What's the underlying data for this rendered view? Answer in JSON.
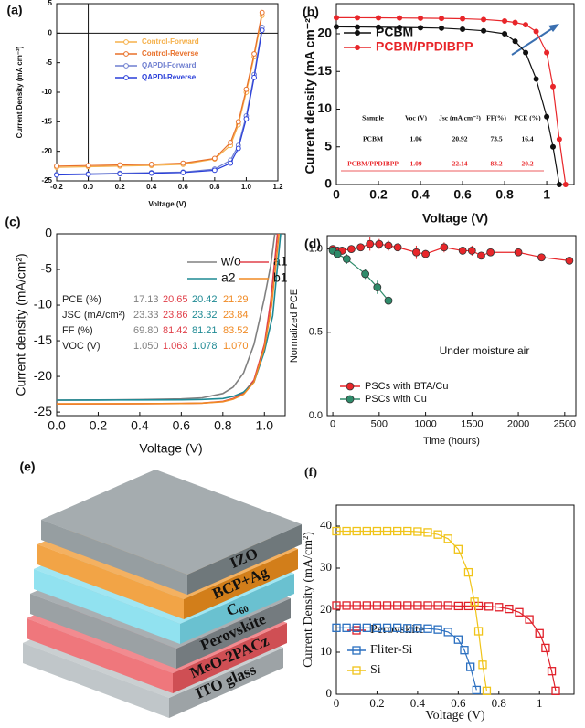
{
  "chart_data": [
    {
      "type": "line",
      "panel_label": "(a)",
      "xlabel": "Voltage (V)",
      "ylabel": "Current Density (mA cm⁻²)",
      "xlim": [
        -0.2,
        1.2
      ],
      "ylim": [
        -25,
        5
      ],
      "xticks": [
        -0.2,
        {
          "value": 0,
          "label": "0.0"
        },
        0.2,
        0.4,
        0.6,
        0.8,
        {
          "value": 1,
          "label": "1.0"
        },
        1.2
      ],
      "yticks": [
        -25,
        -20,
        -15,
        -10,
        -5,
        0,
        5
      ],
      "zero_lines": true,
      "legend": "upper left",
      "legend_text_colored": true,
      "series": [
        {
          "name": "Control-Forward",
          "color": "#f5b04a",
          "marker": "circle-open",
          "x": [
            -0.2,
            0,
            0.2,
            0.4,
            0.6,
            0.8,
            0.9,
            0.95,
            1.0,
            1.05,
            1.1
          ],
          "values": [
            -22.7,
            -22.6,
            -22.5,
            -22.4,
            -22.2,
            -21.3,
            -19,
            -15.5,
            -10,
            -4,
            3
          ]
        },
        {
          "name": "Control-Reverse",
          "color": "#e8702a",
          "marker": "circle-open",
          "x": [
            -0.2,
            0,
            0.2,
            0.4,
            0.6,
            0.8,
            0.9,
            0.95,
            1.0,
            1.05,
            1.1
          ],
          "values": [
            -22.5,
            -22.4,
            -22.3,
            -22.2,
            -22.0,
            -21.2,
            -18.5,
            -15,
            -9.5,
            -3.5,
            3.5
          ]
        },
        {
          "name": "QAPDI-Forward",
          "color": "#6f7fd0",
          "marker": "circle-open",
          "x": [
            -0.2,
            0,
            0.2,
            0.4,
            0.6,
            0.8,
            0.9,
            0.95,
            1.0,
            1.05,
            1.1
          ],
          "values": [
            -23.9,
            -23.8,
            -23.7,
            -23.6,
            -23.5,
            -23.0,
            -21.5,
            -19,
            -14,
            -7,
            1
          ]
        },
        {
          "name": "QAPDI-Reverse",
          "color": "#2a3fd9",
          "marker": "circle-open",
          "x": [
            -0.2,
            0,
            0.2,
            0.4,
            0.6,
            0.8,
            0.9,
            0.95,
            1.0,
            1.05,
            1.1
          ],
          "values": [
            -24,
            -23.9,
            -23.8,
            -23.7,
            -23.6,
            -23.2,
            -22,
            -19.5,
            -14.5,
            -7.5,
            0.5
          ]
        }
      ]
    },
    {
      "type": "line",
      "panel_label": "(b)",
      "xlabel": "Voltage (V)",
      "ylabel": "Current density (mA cm⁻²)",
      "xlim": [
        0,
        1.13
      ],
      "ylim": [
        0,
        24
      ],
      "xticks": [
        0,
        0.2,
        0.4,
        0.6,
        0.8,
        1
      ],
      "yticks": [
        0,
        5,
        10,
        15,
        20
      ],
      "legend": "upper left",
      "legend_text_colored": true,
      "series": [
        {
          "name": "PCBM",
          "color": "#111111",
          "marker": "circle",
          "x": [
            0,
            0.1,
            0.2,
            0.3,
            0.4,
            0.5,
            0.6,
            0.7,
            0.8,
            0.85,
            0.9,
            0.95,
            1.0,
            1.03,
            1.06
          ],
          "values": [
            20.92,
            20.9,
            20.88,
            20.85,
            20.8,
            20.75,
            20.6,
            20.4,
            20.0,
            19.0,
            17.5,
            14,
            9,
            5,
            0
          ]
        },
        {
          "name": "PCBM/PPDIBPP",
          "color": "#e8262a",
          "marker": "circle",
          "x": [
            0,
            0.1,
            0.2,
            0.3,
            0.4,
            0.5,
            0.6,
            0.7,
            0.8,
            0.85,
            0.9,
            0.95,
            1.0,
            1.03,
            1.06,
            1.09
          ],
          "values": [
            22.14,
            22.13,
            22.12,
            22.1,
            22.08,
            22.05,
            22.0,
            21.9,
            21.7,
            21.5,
            21.2,
            20.3,
            17.5,
            13,
            6,
            0
          ]
        }
      ],
      "table": {
        "columns": [
          "Sample",
          "Voc (V)",
          "Jsc (mA cm⁻²)",
          "FF(%)",
          "PCE (%)"
        ],
        "rows": [
          [
            "PCBM",
            1.06,
            20.92,
            73.5,
            16.4
          ],
          [
            "PCBM/PPDIBPP",
            1.09,
            22.14,
            83.2,
            20.2
          ]
        ],
        "row_colors": [
          "#111111",
          "#e8262a"
        ]
      }
    },
    {
      "type": "line",
      "panel_label": "(c)",
      "xlabel": "Voltage (V)",
      "ylabel": "Current density (mA/cm²)",
      "xlim": [
        0,
        1.1
      ],
      "ylim": [
        -25.5,
        0
      ],
      "xticks": [
        {
          "value": 0,
          "label": "0.0"
        },
        0.2,
        0.4,
        0.6,
        0.8,
        {
          "value": 1,
          "label": "1.0"
        }
      ],
      "yticks": [
        -25,
        -20,
        -15,
        -10,
        -5,
        0
      ],
      "legend": "upper right",
      "legend_text_colored": false,
      "series": [
        {
          "name": "w/o",
          "color": "#808080",
          "marker": "none",
          "x": [
            0,
            0.2,
            0.4,
            0.6,
            0.7,
            0.8,
            0.85,
            0.9,
            0.95,
            1.0,
            1.03,
            1.05
          ],
          "values": [
            -23.33,
            -23.3,
            -23.25,
            -23.15,
            -23.0,
            -22.4,
            -21.5,
            -19.5,
            -15.5,
            -9,
            -4.5,
            0
          ]
        },
        {
          "name": "a1",
          "color": "#e0404a",
          "marker": "none",
          "x": [
            0,
            0.2,
            0.4,
            0.6,
            0.7,
            0.8,
            0.85,
            0.9,
            0.95,
            1.0,
            1.03,
            1.063
          ],
          "values": [
            -23.86,
            -23.85,
            -23.83,
            -23.8,
            -23.75,
            -23.5,
            -23.1,
            -22.3,
            -20.5,
            -15.5,
            -9.5,
            0
          ]
        },
        {
          "name": "a2",
          "color": "#1f8a94",
          "marker": "none",
          "x": [
            0,
            0.2,
            0.4,
            0.6,
            0.7,
            0.8,
            0.85,
            0.9,
            0.95,
            1.0,
            1.04,
            1.078
          ],
          "values": [
            -23.32,
            -23.31,
            -23.3,
            -23.28,
            -23.24,
            -23.1,
            -22.8,
            -22.2,
            -20.8,
            -16.5,
            -11.5,
            0
          ]
        },
        {
          "name": "b1",
          "color": "#f08a24",
          "marker": "none",
          "x": [
            0,
            0.2,
            0.4,
            0.6,
            0.7,
            0.8,
            0.85,
            0.9,
            0.95,
            1.0,
            1.035,
            1.07
          ],
          "values": [
            -23.84,
            -23.83,
            -23.82,
            -23.8,
            -23.75,
            -23.55,
            -23.2,
            -22.5,
            -20.8,
            -16,
            -10,
            0
          ]
        }
      ],
      "table": {
        "rows": [
          {
            "label": "PCE (%)",
            "values": [
              17.13,
              20.65,
              20.42,
              21.29
            ]
          },
          {
            "label": "JSC (mA/cm²)",
            "values": [
              23.33,
              23.86,
              23.32,
              23.84
            ]
          },
          {
            "label": "FF (%)",
            "values": [
              "69.80",
              81.42,
              81.21,
              83.52
            ]
          },
          {
            "label": "VOC (V)",
            "values": [
              "1.050",
              1.063,
              1.078,
              "1.070"
            ]
          }
        ]
      }
    },
    {
      "type": "line",
      "panel_label": "(d)",
      "xlabel": "Time (hours)",
      "ylabel": "Normalized PCE",
      "xlim": [
        -60,
        2620
      ],
      "ylim": [
        0,
        1.08
      ],
      "xticks": [
        0,
        500,
        1000,
        1500,
        2000,
        2500
      ],
      "yticks": [
        {
          "value": 0,
          "label": "0.0"
        },
        0.5,
        {
          "value": 1,
          "label": "1.0"
        }
      ],
      "legend": "lower left",
      "legend_text_colored": false,
      "annotation": "Under moisture air",
      "series": [
        {
          "name": "PSCs with BTA/Cu",
          "color": "#e8262a",
          "marker": "circle",
          "x": [
            0,
            50,
            100,
            200,
            300,
            400,
            500,
            600,
            700,
            900,
            1000,
            1200,
            1400,
            1500,
            1600,
            1700,
            2000,
            2250,
            2550
          ],
          "values": [
            1.0,
            0.99,
            0.99,
            1.0,
            1.01,
            1.03,
            1.03,
            1.02,
            1.01,
            0.98,
            0.97,
            1.01,
            0.99,
            0.99,
            0.96,
            0.98,
            0.98,
            0.95,
            0.93
          ],
          "errors": [
            0.02,
            0.02,
            0.02,
            0.02,
            0.02,
            0.04,
            0.03,
            0.03,
            0.02,
            0.04,
            0.02,
            0.03,
            0.02,
            0.03,
            0.02,
            0.02,
            0.02,
            0.01,
            0.02
          ]
        },
        {
          "name": "PSCs with Cu",
          "color": "#2e8b6a",
          "marker": "circle",
          "x": [
            0,
            50,
            150,
            350,
            480,
            600
          ],
          "values": [
            0.99,
            0.97,
            0.94,
            0.85,
            0.77,
            0.69
          ],
          "errors": [
            0.02,
            0.02,
            0.03,
            0.03,
            0.04,
            0.01
          ]
        }
      ]
    },
    {
      "type": "line",
      "panel_label": "(f)",
      "xlabel": "Voltage (V)",
      "ylabel": "Current Density (mA/cm²)",
      "xlim": [
        0,
        1.17
      ],
      "ylim": [
        0,
        45
      ],
      "xticks": [
        0,
        0.2,
        0.4,
        0.6,
        0.8,
        1
      ],
      "yticks": [
        0,
        10,
        20,
        30,
        40
      ],
      "legend": "lower left",
      "legend_text_colored": false,
      "series": [
        {
          "name": "Perovskite",
          "color": "#e0202a",
          "marker": "square-open",
          "x": [
            0,
            0.05,
            0.1,
            0.15,
            0.2,
            0.25,
            0.3,
            0.35,
            0.4,
            0.45,
            0.5,
            0.55,
            0.6,
            0.65,
            0.7,
            0.75,
            0.8,
            0.85,
            0.9,
            0.95,
            1.0,
            1.03,
            1.06,
            1.08
          ],
          "values": [
            21.1,
            21.1,
            21.1,
            21.1,
            21.1,
            21.1,
            21.1,
            21.1,
            21.1,
            21.1,
            21.1,
            21.1,
            21.0,
            21.0,
            21.0,
            20.9,
            20.7,
            20.3,
            19.5,
            17.8,
            14.5,
            11,
            5.5,
            0.8
          ]
        },
        {
          "name": "Fliter-Si",
          "color": "#2a6fc0",
          "marker": "square-open",
          "x": [
            0,
            0.05,
            0.1,
            0.15,
            0.2,
            0.25,
            0.3,
            0.35,
            0.4,
            0.45,
            0.5,
            0.55,
            0.6,
            0.63,
            0.66,
            0.69
          ],
          "values": [
            15.8,
            15.8,
            15.8,
            15.8,
            15.8,
            15.8,
            15.8,
            15.7,
            15.7,
            15.6,
            15.4,
            14.8,
            13.0,
            10.5,
            6.5,
            1.0
          ]
        },
        {
          "name": "Si",
          "color": "#f0c419",
          "marker": "square-open",
          "x": [
            0,
            0.05,
            0.1,
            0.15,
            0.2,
            0.25,
            0.3,
            0.35,
            0.4,
            0.45,
            0.5,
            0.55,
            0.6,
            0.65,
            0.68,
            0.7,
            0.72,
            0.74
          ],
          "values": [
            38.8,
            38.8,
            38.8,
            38.8,
            38.8,
            38.8,
            38.8,
            38.8,
            38.7,
            38.5,
            38.0,
            37,
            34.5,
            29,
            22,
            15,
            7,
            0.8
          ]
        }
      ]
    }
  ],
  "diagram": {
    "panel_label": "(e)",
    "layers": [
      {
        "label": "ITO glass",
        "color": "#b3babd"
      },
      {
        "label": "MeO-2PACz",
        "color": "#ec5a60"
      },
      {
        "label": "Perovskite",
        "color": "#858d91"
      },
      {
        "label": "C₆₀",
        "color": "#79dced"
      },
      {
        "label": "BCP+Ag",
        "color": "#f0901e"
      },
      {
        "label": "IZO",
        "color": "#7f898d"
      }
    ]
  }
}
